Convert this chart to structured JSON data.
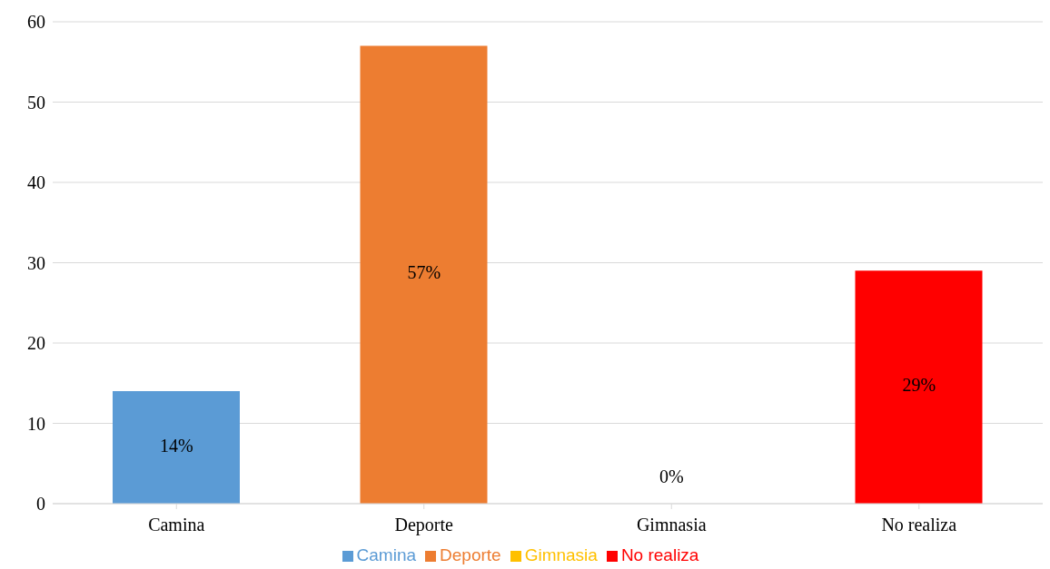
{
  "chart_data": {
    "type": "bar",
    "categories": [
      "Camina",
      "Deporte",
      "Gimnasia",
      "No realiza"
    ],
    "stacked": true,
    "series": [
      {
        "name": "Camina",
        "color": "#5b9bd5",
        "values": [
          14,
          null,
          null,
          null
        ],
        "value_labels": [
          "14%",
          null,
          null,
          null
        ]
      },
      {
        "name": "Deporte",
        "color": "#ed7d31",
        "values": [
          null,
          57,
          null,
          null
        ],
        "value_labels": [
          null,
          "57%",
          null,
          null
        ]
      },
      {
        "name": "Gimnasia",
        "color": "#ffc000",
        "values": [
          null,
          null,
          0,
          null
        ],
        "value_labels": [
          null,
          null,
          "0%",
          null
        ]
      },
      {
        "name": "No realiza",
        "color": "#ff0000",
        "values": [
          null,
          null,
          null,
          29
        ],
        "value_labels": [
          null,
          null,
          null,
          "29%"
        ]
      }
    ],
    "ylim": [
      0,
      60
    ],
    "yticks": [
      0,
      10,
      20,
      30,
      40,
      50,
      60
    ],
    "grid": "y",
    "legend": "bottom"
  }
}
